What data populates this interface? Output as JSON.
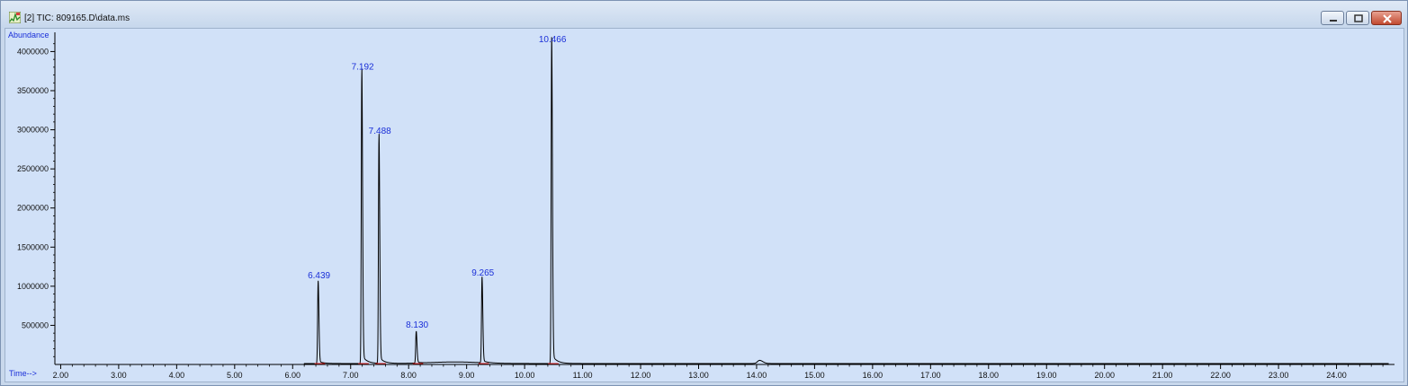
{
  "window": {
    "title": "[2] TIC: 809165.D\\data.ms",
    "icon": "chromatogram-icon"
  },
  "colors": {
    "trace": "#000000",
    "baseline_marks": "#e02020",
    "labels": "#1a2fd8",
    "plot_background": "#d1e1f8"
  },
  "chart_data": {
    "type": "line",
    "title": "",
    "ylabel": "Abundance",
    "xlabel": "Time-->",
    "xlim": [
      1.9,
      25.0
    ],
    "ylim": [
      0,
      4200000
    ],
    "x_ticks": [
      "2.00",
      "3.00",
      "4.00",
      "5.00",
      "6.00",
      "7.00",
      "8.00",
      "9.00",
      "10.00",
      "11.00",
      "12.00",
      "13.00",
      "14.00",
      "15.00",
      "16.00",
      "17.00",
      "18.00",
      "19.00",
      "20.00",
      "21.00",
      "22.00",
      "23.00",
      "24.00"
    ],
    "y_ticks": [
      "500000",
      "1000000",
      "1500000",
      "2000000",
      "2500000",
      "3000000",
      "3500000",
      "4000000"
    ],
    "grid": false,
    "peaks": [
      {
        "rt": 6.439,
        "label": "6.439",
        "height": 1030000
      },
      {
        "rt": 7.192,
        "label": "7.192",
        "height": 3700000
      },
      {
        "rt": 7.488,
        "label": "7.488",
        "height": 2880000
      },
      {
        "rt": 8.13,
        "label": "8.130",
        "height": 400000
      },
      {
        "rt": 9.265,
        "label": "9.265",
        "height": 1070000
      },
      {
        "rt": 10.466,
        "label": "10.466",
        "height": 4050000
      }
    ],
    "minor_features": [
      {
        "rt": 14.05,
        "height": 40000
      }
    ]
  }
}
